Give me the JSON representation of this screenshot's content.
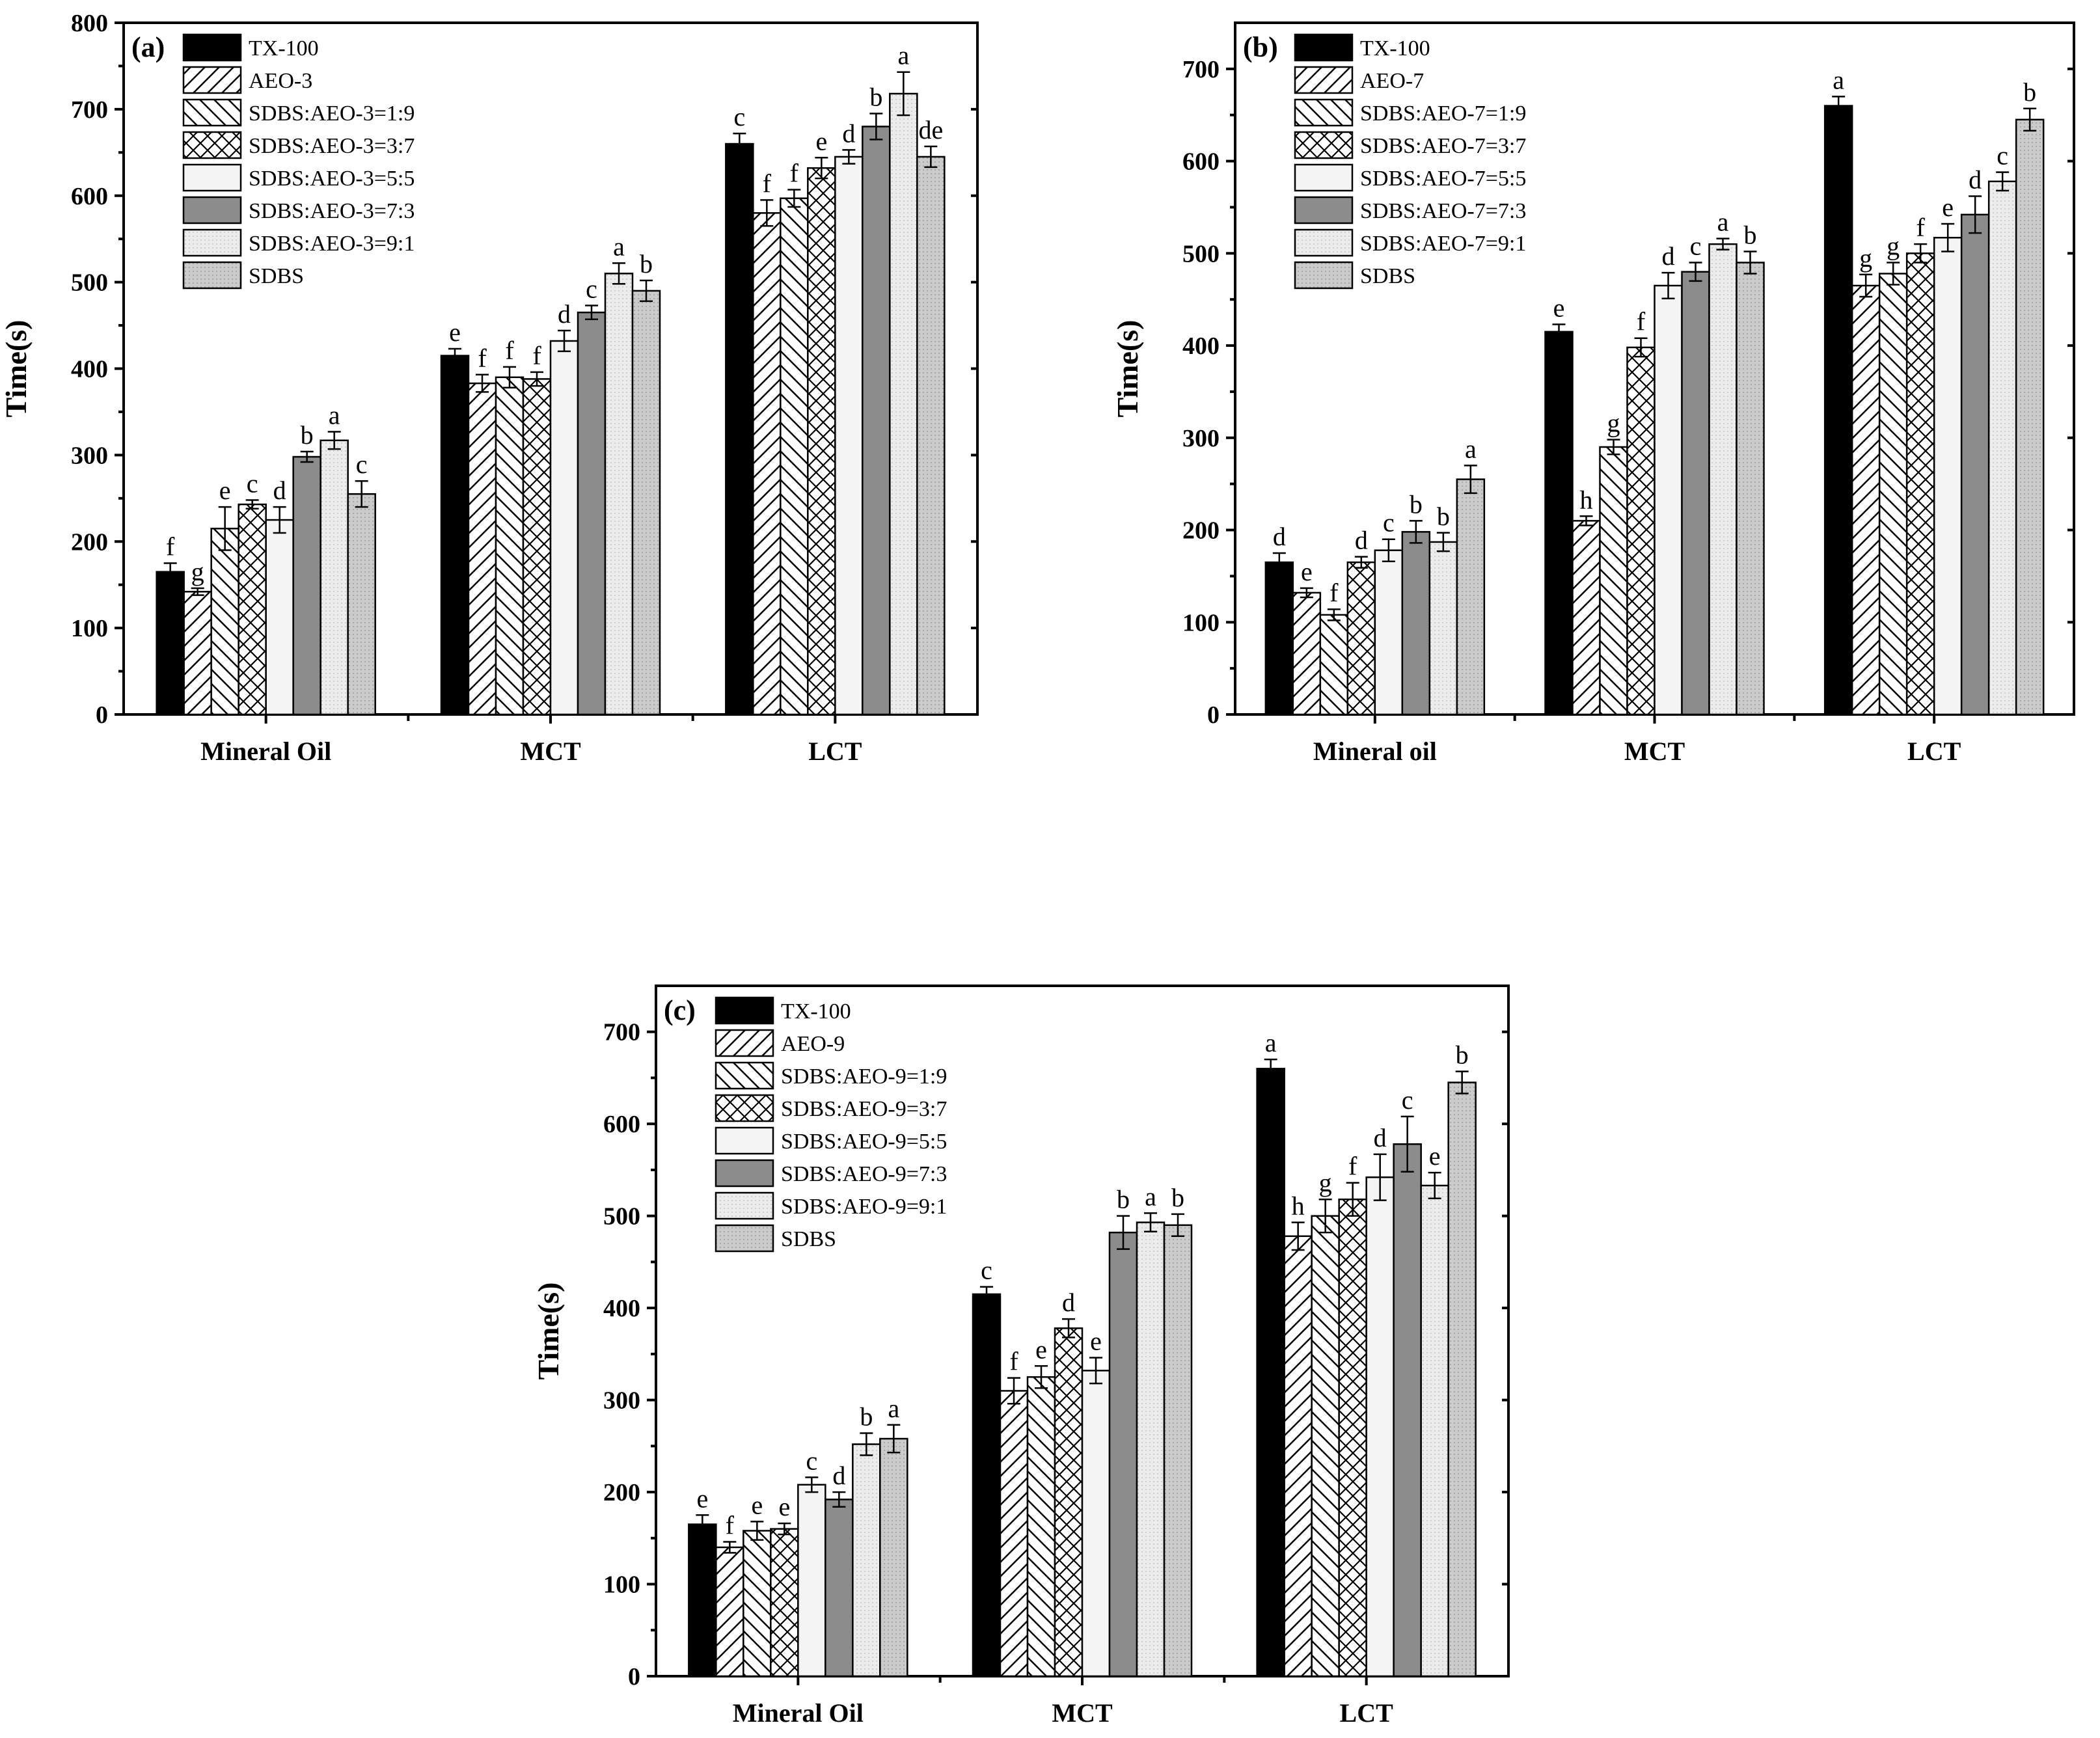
{
  "colors": {
    "tx100": "#000000",
    "hatch_bg": "#ffffff",
    "ratio_5_5": "#f4f4f4",
    "ratio_7_3": "#8c8c8c",
    "ratio_9_1": "#e8e8e8",
    "sdbs": "#c8c8c8"
  },
  "chart_data": [
    {
      "type": "bar",
      "panel": "(a)",
      "ylabel": "Time(s)",
      "xlabel": "",
      "ylim": [
        0,
        800
      ],
      "yticks": [
        0,
        100,
        200,
        300,
        400,
        500,
        600,
        700,
        800
      ],
      "categories": [
        "Mineral Oil",
        "MCT",
        "LCT"
      ],
      "legend_position": "top-left",
      "series": [
        {
          "name": "TX-100",
          "style": "black",
          "values": [
            165,
            415,
            660
          ],
          "errors": [
            10,
            8,
            12
          ],
          "labels": [
            "f",
            "e",
            "c"
          ]
        },
        {
          "name": "AEO-3",
          "style": "hatch-fwd",
          "values": [
            142,
            383,
            580
          ],
          "errors": [
            4,
            10,
            15
          ],
          "labels": [
            "g",
            "f",
            "f"
          ]
        },
        {
          "name": "SDBS:AEO-3=1:9",
          "style": "hatch-back",
          "values": [
            215,
            390,
            597
          ],
          "errors": [
            25,
            12,
            10
          ],
          "labels": [
            "e",
            "f",
            "f"
          ]
        },
        {
          "name": "SDBS:AEO-3=3:7",
          "style": "hatch-cross",
          "values": [
            243,
            388,
            632
          ],
          "errors": [
            5,
            8,
            12
          ],
          "labels": [
            "c",
            "f",
            "e"
          ]
        },
        {
          "name": "SDBS:AEO-3=5:5",
          "style": "light",
          "values": [
            225,
            432,
            645
          ],
          "errors": [
            15,
            12,
            8
          ],
          "labels": [
            "d",
            "d",
            "d"
          ]
        },
        {
          "name": "SDBS:AEO-3=7:3",
          "style": "dark-gray",
          "values": [
            298,
            465,
            680
          ],
          "errors": [
            6,
            8,
            15
          ],
          "labels": [
            "b",
            "c",
            "b"
          ]
        },
        {
          "name": "SDBS:AEO-3=9:1",
          "style": "light-gray",
          "values": [
            317,
            510,
            718
          ],
          "errors": [
            10,
            12,
            25
          ],
          "labels": [
            "a",
            "a",
            "a"
          ]
        },
        {
          "name": "SDBS",
          "style": "mid-gray",
          "values": [
            255,
            490,
            645
          ],
          "errors": [
            15,
            12,
            12
          ],
          "labels": [
            "c",
            "b",
            "de"
          ]
        }
      ]
    },
    {
      "type": "bar",
      "panel": "(b)",
      "ylabel": "Time(s)",
      "xlabel": "",
      "ylim": [
        0,
        750
      ],
      "yticks": [
        0,
        100,
        200,
        300,
        400,
        500,
        600,
        700
      ],
      "categories": [
        "Mineral oil",
        "MCT",
        "LCT"
      ],
      "legend_position": "top-left",
      "series": [
        {
          "name": "TX-100",
          "style": "black",
          "values": [
            165,
            415,
            660
          ],
          "errors": [
            10,
            8,
            10
          ],
          "labels": [
            "d",
            "e",
            "a"
          ]
        },
        {
          "name": "AEO-7",
          "style": "hatch-fwd",
          "values": [
            132,
            210,
            465
          ],
          "errors": [
            5,
            5,
            12
          ],
          "labels": [
            "e",
            "h",
            "g"
          ]
        },
        {
          "name": "SDBS:AEO-7=1:9",
          "style": "hatch-back",
          "values": [
            108,
            290,
            478
          ],
          "errors": [
            6,
            8,
            12
          ],
          "labels": [
            "f",
            "g",
            "g"
          ]
        },
        {
          "name": "SDBS:AEO-7=3:7",
          "style": "hatch-cross",
          "values": [
            165,
            398,
            500
          ],
          "errors": [
            6,
            10,
            10
          ],
          "labels": [
            "d",
            "f",
            "f"
          ]
        },
        {
          "name": "SDBS:AEO-7=5:5",
          "style": "light",
          "values": [
            178,
            465,
            517
          ],
          "errors": [
            12,
            14,
            15
          ],
          "labels": [
            "c",
            "d",
            "e"
          ]
        },
        {
          "name": "SDBS:AEO-7=7:3",
          "style": "dark-gray",
          "values": [
            198,
            480,
            542
          ],
          "errors": [
            12,
            10,
            20
          ],
          "labels": [
            "b",
            "c",
            "d"
          ]
        },
        {
          "name": "SDBS:AEO-7=9:1",
          "style": "light-gray",
          "values": [
            187,
            510,
            578
          ],
          "errors": [
            10,
            6,
            10
          ],
          "labels": [
            "b",
            "a",
            "c"
          ]
        },
        {
          "name": "SDBS",
          "style": "mid-gray",
          "values": [
            255,
            490,
            645
          ],
          "errors": [
            15,
            12,
            12
          ],
          "labels": [
            "a",
            "b",
            "b"
          ]
        }
      ]
    },
    {
      "type": "bar",
      "panel": "(c)",
      "ylabel": "Time(s)",
      "xlabel": "",
      "ylim": [
        0,
        750
      ],
      "yticks": [
        0,
        100,
        200,
        300,
        400,
        500,
        600,
        700
      ],
      "categories": [
        "Mineral Oil",
        "MCT",
        "LCT"
      ],
      "legend_position": "top-left",
      "series": [
        {
          "name": "TX-100",
          "style": "black",
          "values": [
            165,
            415,
            660
          ],
          "errors": [
            10,
            8,
            10
          ],
          "labels": [
            "e",
            "c",
            "a"
          ]
        },
        {
          "name": "AEO-9",
          "style": "hatch-fwd",
          "values": [
            140,
            310,
            478
          ],
          "errors": [
            6,
            14,
            15
          ],
          "labels": [
            "f",
            "f",
            "h"
          ]
        },
        {
          "name": "SDBS:AEO-9=1:9",
          "style": "hatch-back",
          "values": [
            158,
            325,
            500
          ],
          "errors": [
            10,
            12,
            18
          ],
          "labels": [
            "e",
            "e",
            "g"
          ]
        },
        {
          "name": "SDBS:AEO-9=3:7",
          "style": "hatch-cross",
          "values": [
            160,
            378,
            518
          ],
          "errors": [
            6,
            10,
            18
          ],
          "labels": [
            "e",
            "d",
            "f"
          ]
        },
        {
          "name": "SDBS:AEO-9=5:5",
          "style": "light",
          "values": [
            208,
            332,
            542
          ],
          "errors": [
            8,
            14,
            25
          ],
          "labels": [
            "c",
            "e",
            "d"
          ]
        },
        {
          "name": "SDBS:AEO-9=7:3",
          "style": "dark-gray",
          "values": [
            192,
            482,
            578
          ],
          "errors": [
            8,
            18,
            30
          ],
          "labels": [
            "d",
            "b",
            "c"
          ]
        },
        {
          "name": "SDBS:AEO-9=9:1",
          "style": "light-gray",
          "values": [
            252,
            493,
            533
          ],
          "errors": [
            12,
            10,
            14
          ],
          "labels": [
            "b",
            "a",
            "e"
          ]
        },
        {
          "name": "SDBS",
          "style": "mid-gray",
          "values": [
            258,
            490,
            645
          ],
          "errors": [
            15,
            12,
            12
          ],
          "labels": [
            "a",
            "b",
            "b"
          ]
        }
      ]
    }
  ]
}
